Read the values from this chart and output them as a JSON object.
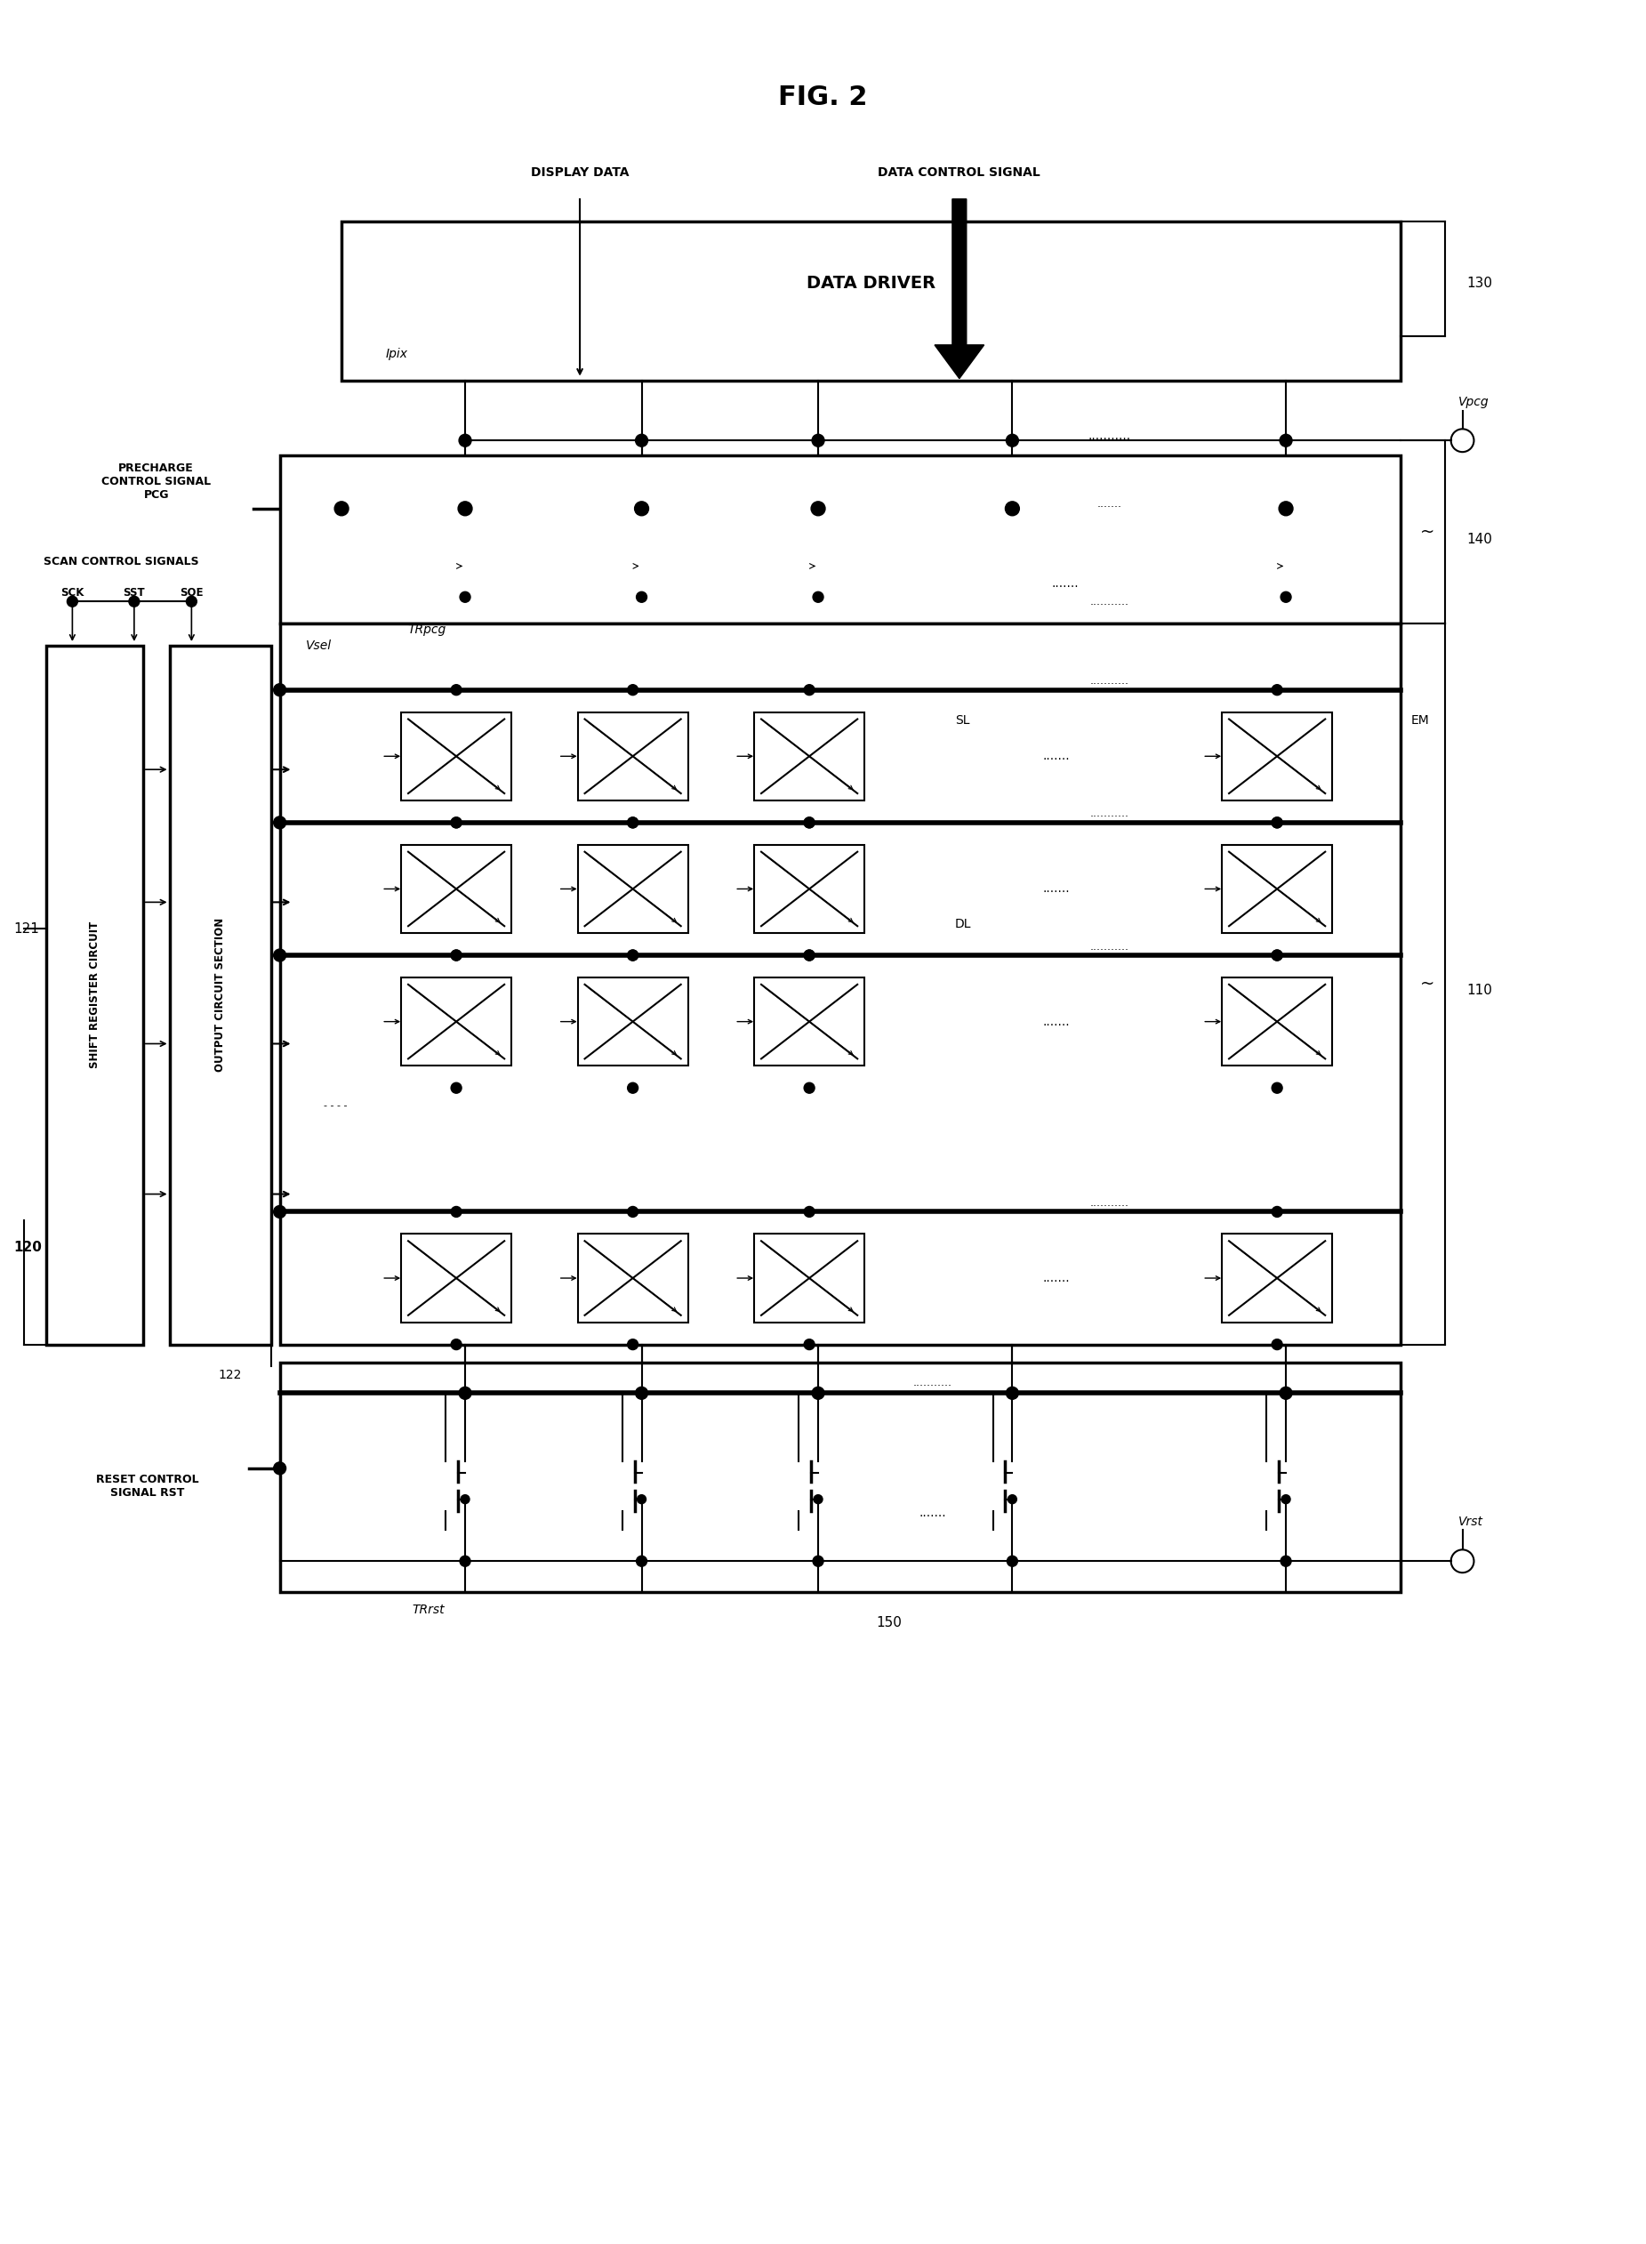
{
  "title": "FIG. 2",
  "bg_color": "#ffffff",
  "line_color": "#000000",
  "labels": {
    "display_data": "DISPLAY DATA",
    "data_control_signal": "DATA CONTROL SIGNAL",
    "data_driver": "DATA DRIVER",
    "ipix": "Ipix",
    "vpcg": "Vpcg",
    "precharge": "PRECHARGE\nCONTROL SIGNAL\nPCG",
    "scan_control": "SCAN CONTROL SIGNALS",
    "sck": "SCK",
    "sst": "SST",
    "soe": "SOE",
    "trpcg": "TRpcg",
    "vsel": "Vsel",
    "sl": "SL",
    "em": "EM",
    "dl": "DL",
    "reset_control": "RESET CONTROL\nSIGNAL RST",
    "trrst": "TRrst",
    "vrst": "Vrst",
    "shift_register": "SHIFT REGISTER CIRCUIT",
    "output_circuit": "OUTPUT CIRCUIT SECTION",
    "ref_130": "130",
    "ref_120": "120",
    "ref_140": "140",
    "ref_110": "110",
    "ref_150": "150",
    "ref_121": "121",
    "ref_122": "122"
  }
}
